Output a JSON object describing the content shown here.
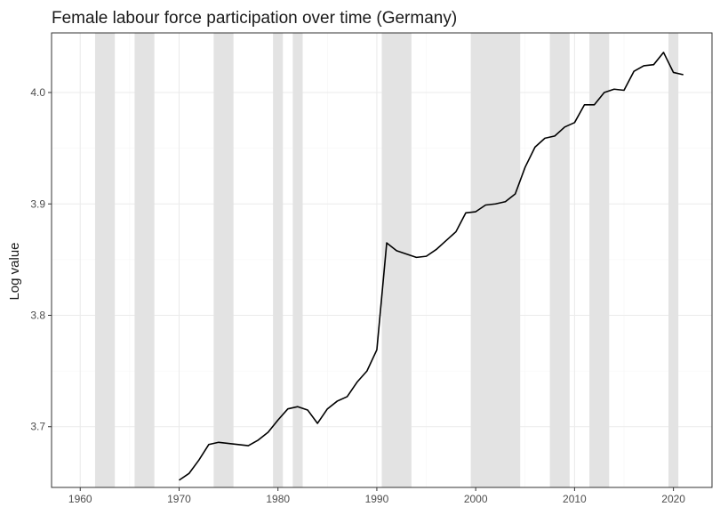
{
  "chart_data": {
    "type": "line",
    "title": "Female labour force participation over time (Germany)",
    "xlabel": "",
    "ylabel": "Log value",
    "xlim": [
      1957.1,
      2023.9
    ],
    "ylim": [
      3.6455,
      4.0535
    ],
    "x_ticks": [
      1960,
      1970,
      1980,
      1990,
      2000,
      2010,
      2020
    ],
    "x_tick_labels": [
      "1960",
      "1970",
      "1980",
      "1990",
      "2000",
      "2010",
      "2020"
    ],
    "y_ticks": [
      3.7,
      3.8,
      3.9,
      4.0
    ],
    "y_tick_labels": [
      "3.7",
      "3.8",
      "3.9",
      "4.0"
    ],
    "grid": true,
    "legend": "none",
    "shaded_periods": [
      [
        1961.5,
        1963.5
      ],
      [
        1965.5,
        1967.5
      ],
      [
        1973.5,
        1975.5
      ],
      [
        1979.5,
        1980.5
      ],
      [
        1981.5,
        1982.5
      ],
      [
        1990.5,
        1993.5
      ],
      [
        1999.5,
        2004.5
      ],
      [
        2007.5,
        2009.5
      ],
      [
        2011.5,
        2013.5
      ],
      [
        2019.5,
        2020.5
      ]
    ],
    "colors": {
      "line": "#000000",
      "shade": "#e3e3e3",
      "grid_major": "#ebebeb",
      "grid_minor": "#f5f5f5",
      "border": "#333333"
    },
    "series": [
      {
        "x": [
          1970,
          1971,
          1972,
          1973,
          1974,
          1975,
          1976,
          1977,
          1978,
          1979,
          1980,
          1981,
          1982,
          1983,
          1984,
          1985,
          1986,
          1987,
          1988,
          1989,
          1990,
          1991,
          1992,
          1993,
          1994,
          1995,
          1996,
          1997,
          1998,
          1999,
          2000,
          2001,
          2002,
          2003,
          2004,
          2005,
          2006,
          2007,
          2008,
          2009,
          2010,
          2011,
          2012,
          2013,
          2014,
          2015,
          2016,
          2017,
          2018,
          2019,
          2020,
          2021
        ],
        "values": [
          3.652,
          3.658,
          3.67,
          3.684,
          3.686,
          3.685,
          3.684,
          3.683,
          3.688,
          3.695,
          3.706,
          3.716,
          3.718,
          3.715,
          3.703,
          3.716,
          3.723,
          3.727,
          3.74,
          3.75,
          3.769,
          3.865,
          3.858,
          3.855,
          3.852,
          3.853,
          3.859,
          3.867,
          3.875,
          3.892,
          3.893,
          3.899,
          3.9,
          3.902,
          3.909,
          3.933,
          3.951,
          3.959,
          3.961,
          3.969,
          3.973,
          3.989,
          3.989,
          4.0,
          4.003,
          4.002,
          4.019,
          4.024,
          4.025,
          4.036,
          4.018,
          4.016
        ]
      }
    ]
  }
}
